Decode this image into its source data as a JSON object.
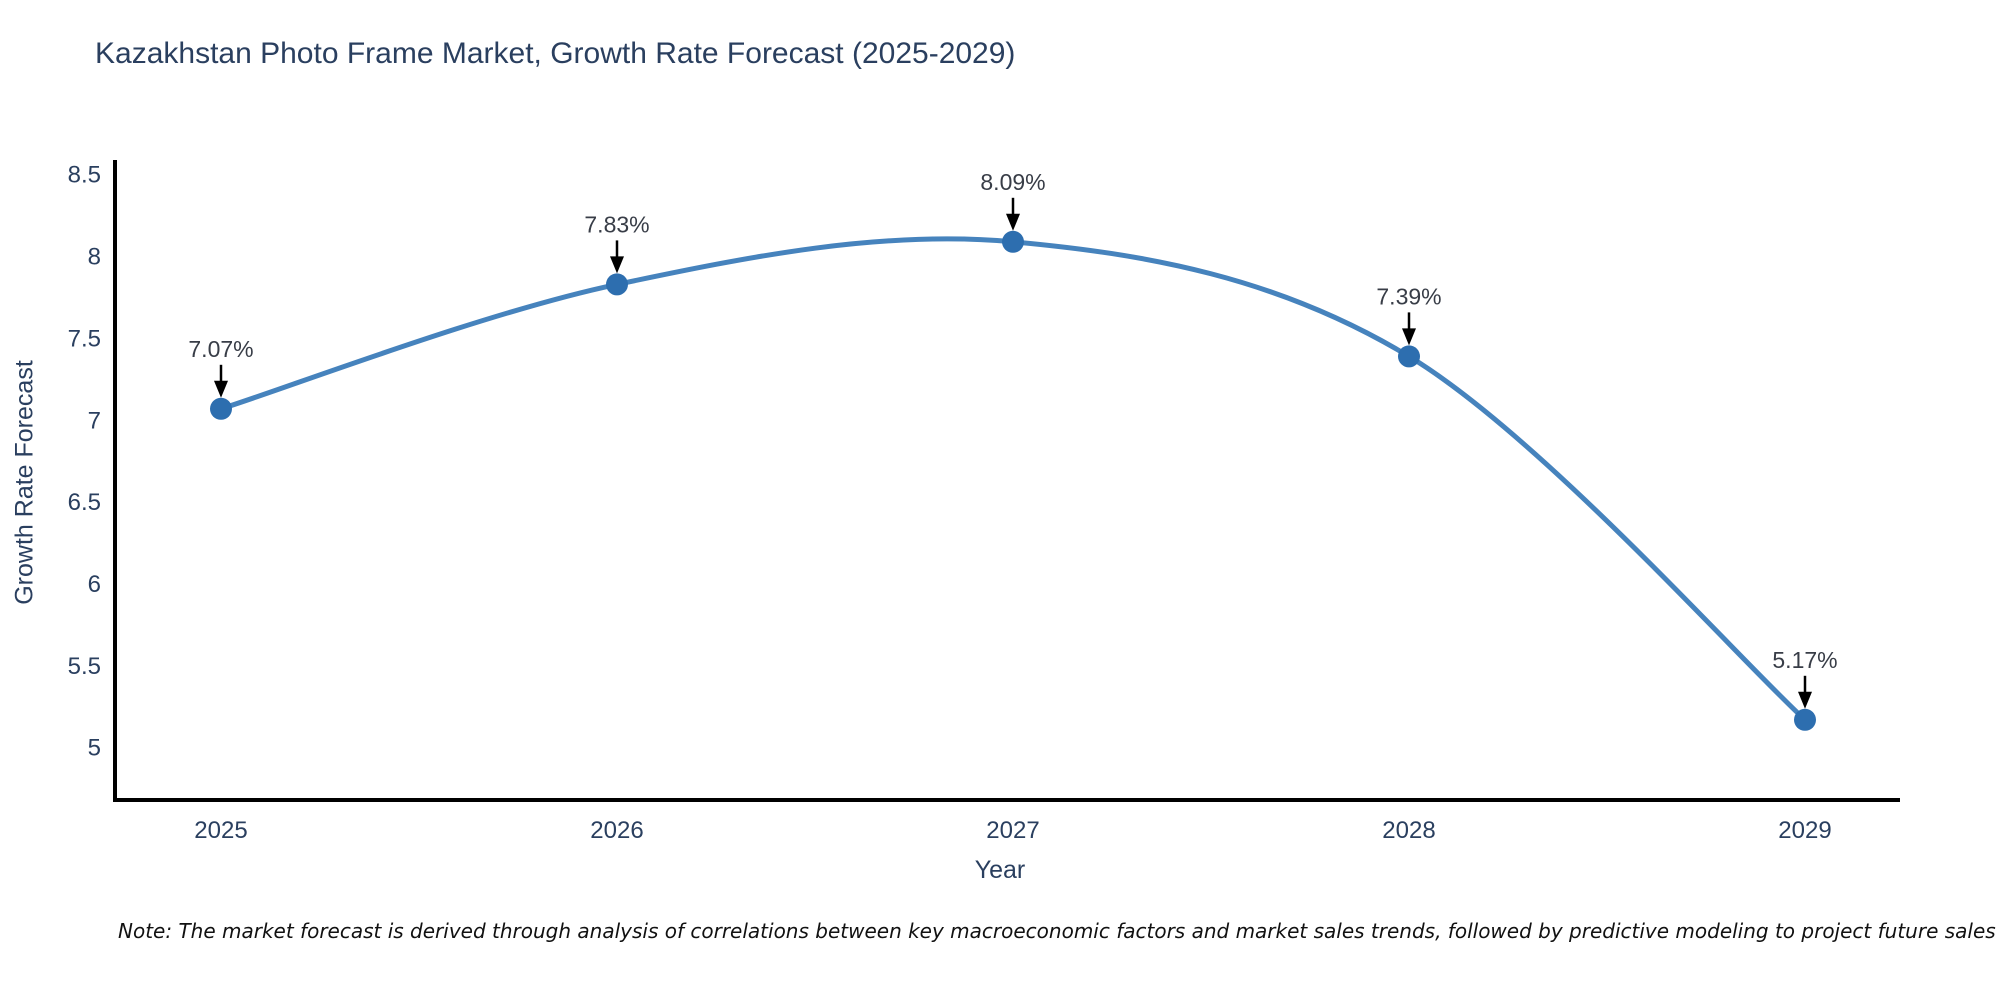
{
  "title": "Kazakhstan Photo Frame Market, Growth Rate Forecast (2025-2029)",
  "footnote": "Note: The market forecast is derived through analysis of correlations between key macroeconomic factors and market sales trends, followed by predictive modeling to project future sales",
  "chart_data": {
    "type": "line",
    "title": "Kazakhstan Photo Frame Market, Growth Rate Forecast (2025-2029)",
    "x": [
      2025,
      2026,
      2027,
      2028,
      2029
    ],
    "series": [
      {
        "name": "Growth Rate Forecast",
        "values": [
          7.07,
          7.83,
          8.09,
          7.39,
          5.17
        ]
      }
    ],
    "point_labels": [
      "7.07%",
      "7.83%",
      "8.09%",
      "7.39%",
      "5.17%"
    ],
    "xlabel": "Year",
    "ylabel": "Growth Rate Forecast",
    "yticks": [
      5,
      5.5,
      6,
      6.5,
      7,
      7.5,
      8,
      8.5
    ],
    "ylim": [
      4.68,
      8.59
    ],
    "grid": false,
    "legend_position": "none",
    "line_style": "spline",
    "marker_style": "circle",
    "colors": {
      "line": "#4683bd",
      "marker": "#2d6eaf",
      "axis": "#000000",
      "tick_text": "#2a3f5f",
      "annotation_text": "#383d47",
      "arrow": "#000000"
    }
  }
}
